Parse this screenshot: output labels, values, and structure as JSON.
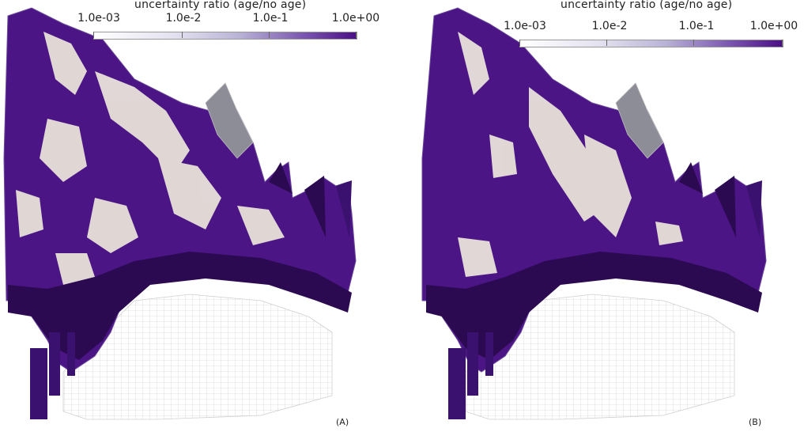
{
  "colorbar": {
    "title": "uncertainty ratio (age/no age)",
    "ticks": [
      "1.0e-03",
      "1.0e-2",
      "1.0e-1",
      "1.0e+00"
    ],
    "colors": {
      "low": "#ffffff",
      "mid": "#b9b4d6",
      "high": "#4a0e87"
    }
  },
  "panels": [
    {
      "label": "(A)"
    },
    {
      "label": "(B)"
    }
  ],
  "palette": {
    "purple": "#4b1585",
    "dark_purple": "#2c0a52",
    "cream": "#e8e2da",
    "grey": "#8d8d97",
    "wire": "#bdbdbd"
  }
}
